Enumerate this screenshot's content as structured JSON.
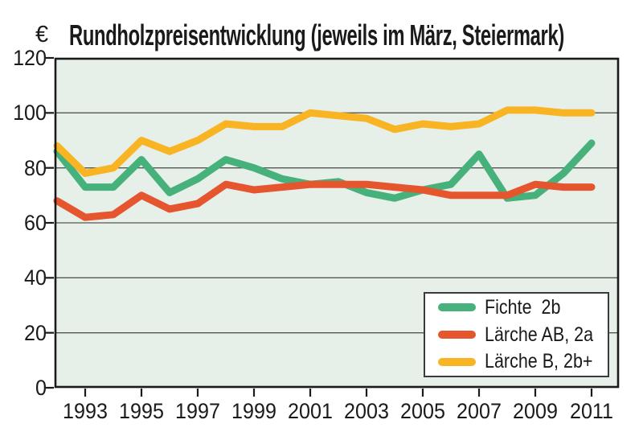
{
  "chart_data": {
    "type": "line",
    "title": "Rundholzpreisentwicklung (jeweils im März, Steiermark)",
    "ylabel": "€",
    "xlabel": "",
    "x": [
      1992,
      1993,
      1994,
      1995,
      1996,
      1997,
      1998,
      1999,
      2000,
      2001,
      2002,
      2003,
      2004,
      2005,
      2006,
      2007,
      2008,
      2009,
      2010,
      2011
    ],
    "x_ticks": [
      1993,
      1995,
      1997,
      1999,
      2001,
      2003,
      2005,
      2007,
      2009,
      2011
    ],
    "y_ticks": [
      0,
      20,
      40,
      60,
      80,
      100,
      120
    ],
    "xlim": [
      1992,
      2012
    ],
    "ylim": [
      0,
      120
    ],
    "grid": true,
    "legend_position": "bottom-right",
    "series": [
      {
        "name": "Fichte  2b",
        "color": "#47b17c",
        "values": [
          86,
          73,
          73,
          83,
          71,
          76,
          83,
          80,
          76,
          74,
          75,
          71,
          69,
          72,
          74,
          85,
          69,
          70,
          78,
          89
        ]
      },
      {
        "name": "Lärche AB, 2a",
        "color": "#e5562f",
        "values": [
          68,
          62,
          63,
          70,
          65,
          67,
          74,
          72,
          73,
          74,
          74,
          74,
          73,
          72,
          70,
          70,
          70,
          74,
          73,
          73
        ]
      },
      {
        "name": "Lärche B, 2b+",
        "color": "#f8b423",
        "values": [
          88,
          78,
          80,
          90,
          86,
          90,
          96,
          95,
          95,
          100,
          99,
          98,
          94,
          96,
          95,
          96,
          101,
          101,
          100,
          100
        ]
      }
    ]
  },
  "colors": {
    "page_background": "#ffffff",
    "plot_background": "#e7efe9",
    "grid_line": "#565656",
    "axis": "#1a1a1a",
    "legend_border": "#3a3a3a",
    "text": "#1a1a1a"
  }
}
